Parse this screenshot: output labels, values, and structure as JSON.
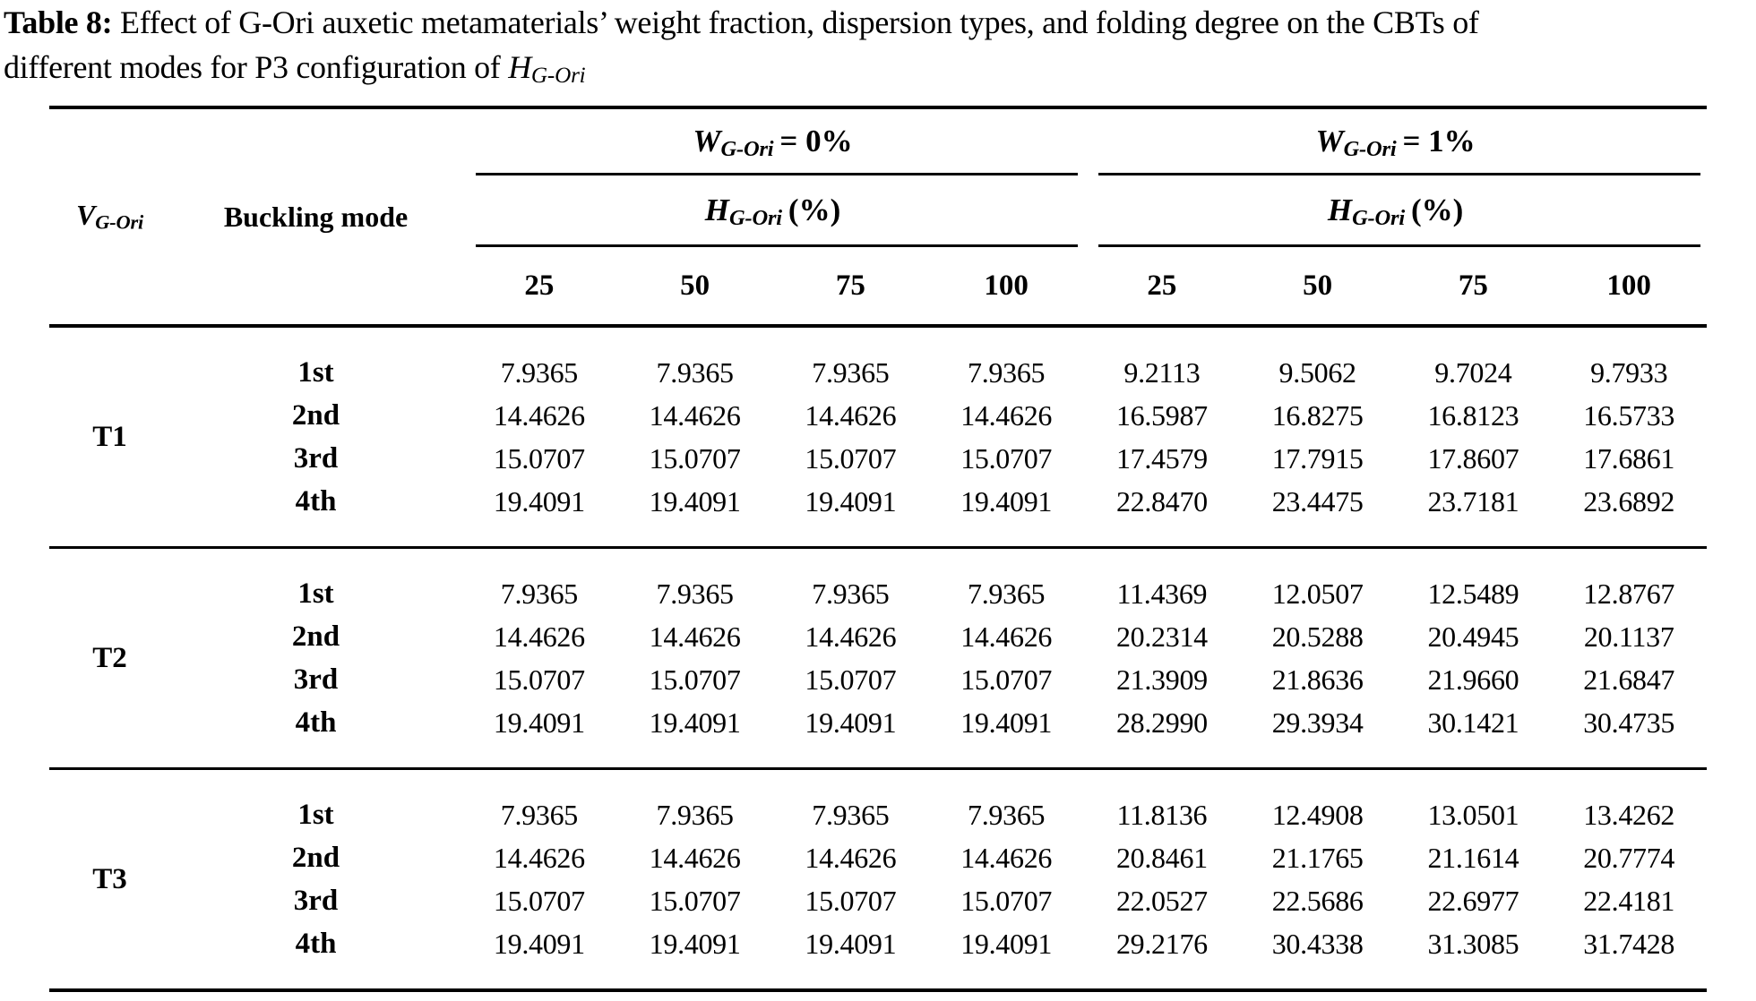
{
  "title": {
    "label": "Table 8:",
    "line1": "Effect of G-Ori auxetic metamaterials’ weight fraction, dispersion types, and folding degree on the CBTs of",
    "line2": "different modes for P3 configuration of",
    "math_base": "H",
    "math_sub": "G-Ori"
  },
  "table": {
    "header": {
      "v_base": "V",
      "v_sub": "G-Ori",
      "buckling": "Buckling mode",
      "groups": [
        {
          "w_base": "W",
          "w_sub": "G-Ori",
          "w_eq": "= 0%",
          "h_base": "H",
          "h_sub": "G-Ori",
          "h_unit": "(%)",
          "cols": [
            "25",
            "50",
            "75",
            "100"
          ]
        },
        {
          "w_base": "W",
          "w_sub": "G-Ori",
          "w_eq": "= 1%",
          "h_base": "H",
          "h_sub": "G-Ori",
          "h_unit": "(%)",
          "cols": [
            "25",
            "50",
            "75",
            "100"
          ]
        }
      ]
    },
    "blocks": [
      {
        "label": "T1",
        "rows": [
          {
            "mode": "1st",
            "values": [
              "7.9365",
              "7.9365",
              "7.9365",
              "7.9365",
              "9.2113",
              "9.5062",
              "9.7024",
              "9.7933"
            ]
          },
          {
            "mode": "2nd",
            "values": [
              "14.4626",
              "14.4626",
              "14.4626",
              "14.4626",
              "16.5987",
              "16.8275",
              "16.8123",
              "16.5733"
            ]
          },
          {
            "mode": "3rd",
            "values": [
              "15.0707",
              "15.0707",
              "15.0707",
              "15.0707",
              "17.4579",
              "17.7915",
              "17.8607",
              "17.6861"
            ]
          },
          {
            "mode": "4th",
            "values": [
              "19.4091",
              "19.4091",
              "19.4091",
              "19.4091",
              "22.8470",
              "23.4475",
              "23.7181",
              "23.6892"
            ]
          }
        ]
      },
      {
        "label": "T2",
        "rows": [
          {
            "mode": "1st",
            "values": [
              "7.9365",
              "7.9365",
              "7.9365",
              "7.9365",
              "11.4369",
              "12.0507",
              "12.5489",
              "12.8767"
            ]
          },
          {
            "mode": "2nd",
            "values": [
              "14.4626",
              "14.4626",
              "14.4626",
              "14.4626",
              "20.2314",
              "20.5288",
              "20.4945",
              "20.1137"
            ]
          },
          {
            "mode": "3rd",
            "values": [
              "15.0707",
              "15.0707",
              "15.0707",
              "15.0707",
              "21.3909",
              "21.8636",
              "21.9660",
              "21.6847"
            ]
          },
          {
            "mode": "4th",
            "values": [
              "19.4091",
              "19.4091",
              "19.4091",
              "19.4091",
              "28.2990",
              "29.3934",
              "30.1421",
              "30.4735"
            ]
          }
        ]
      },
      {
        "label": "T3",
        "rows": [
          {
            "mode": "1st",
            "values": [
              "7.9365",
              "7.9365",
              "7.9365",
              "7.9365",
              "11.8136",
              "12.4908",
              "13.0501",
              "13.4262"
            ]
          },
          {
            "mode": "2nd",
            "values": [
              "14.4626",
              "14.4626",
              "14.4626",
              "14.4626",
              "20.8461",
              "21.1765",
              "21.1614",
              "20.7774"
            ]
          },
          {
            "mode": "3rd",
            "values": [
              "15.0707",
              "15.0707",
              "15.0707",
              "15.0707",
              "22.0527",
              "22.5686",
              "22.6977",
              "22.4181"
            ]
          },
          {
            "mode": "4th",
            "values": [
              "19.4091",
              "19.4091",
              "19.4091",
              "19.4091",
              "29.2176",
              "30.4338",
              "31.3085",
              "31.7428"
            ]
          }
        ]
      }
    ]
  }
}
